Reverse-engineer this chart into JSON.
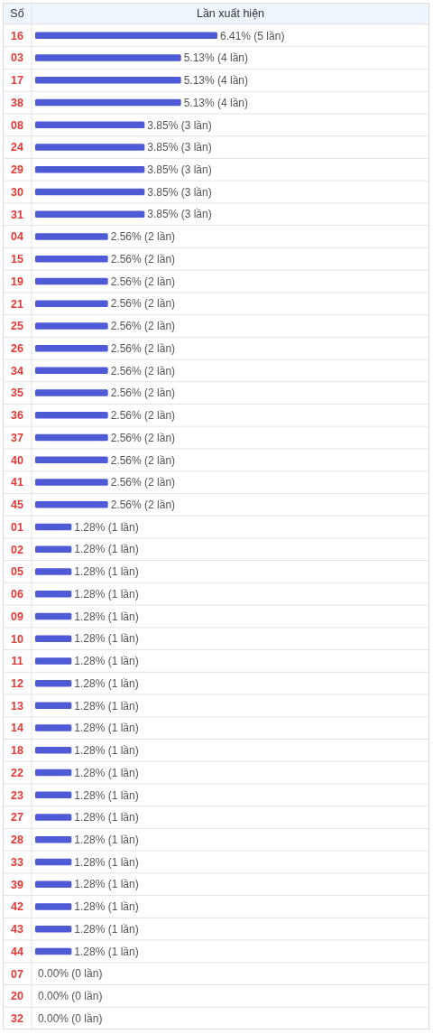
{
  "chart_data": {
    "type": "bar",
    "orientation": "horizontal",
    "xlabel": "Lần xuất hiện",
    "ylabel": "Số",
    "color": "#4e5ad6",
    "grid": "y",
    "categories": [
      "16",
      "03",
      "17",
      "38",
      "08",
      "24",
      "29",
      "30",
      "31",
      "04",
      "15",
      "19",
      "21",
      "25",
      "26",
      "34",
      "35",
      "36",
      "37",
      "40",
      "41",
      "45",
      "01",
      "02",
      "05",
      "06",
      "09",
      "10",
      "11",
      "12",
      "13",
      "14",
      "18",
      "22",
      "23",
      "27",
      "28",
      "33",
      "39",
      "42",
      "43",
      "44",
      "07",
      "20",
      "32"
    ],
    "values": [
      6.41,
      5.13,
      5.13,
      5.13,
      3.85,
      3.85,
      3.85,
      3.85,
      3.85,
      2.56,
      2.56,
      2.56,
      2.56,
      2.56,
      2.56,
      2.56,
      2.56,
      2.56,
      2.56,
      2.56,
      2.56,
      2.56,
      1.28,
      1.28,
      1.28,
      1.28,
      1.28,
      1.28,
      1.28,
      1.28,
      1.28,
      1.28,
      1.28,
      1.28,
      1.28,
      1.28,
      1.28,
      1.28,
      1.28,
      1.28,
      1.28,
      1.28,
      0,
      0,
      0
    ],
    "value_labels": [
      "6.41% (5 lần)",
      "5.13% (4 lần)",
      "5.13% (4 lần)",
      "5.13% (4 lần)",
      "3.85% (3 lần)",
      "3.85% (3 lần)",
      "3.85% (3 lần)",
      "3.85% (3 lần)",
      "3.85% (3 lần)",
      "2.56% (2 lần)",
      "2.56% (2 lần)",
      "2.56% (2 lần)",
      "2.56% (2 lần)",
      "2.56% (2 lần)",
      "2.56% (2 lần)",
      "2.56% (2 lần)",
      "2.56% (2 lần)",
      "2.56% (2 lần)",
      "2.56% (2 lần)",
      "2.56% (2 lần)",
      "2.56% (2 lần)",
      "2.56% (2 lần)",
      "1.28% (1 lần)",
      "1.28% (1 lần)",
      "1.28% (1 lần)",
      "1.28% (1 lần)",
      "1.28% (1 lần)",
      "1.28% (1 lần)",
      "1.28% (1 lần)",
      "1.28% (1 lần)",
      "1.28% (1 lần)",
      "1.28% (1 lần)",
      "1.28% (1 lần)",
      "1.28% (1 lần)",
      "1.28% (1 lần)",
      "1.28% (1 lần)",
      "1.28% (1 lần)",
      "1.28% (1 lần)",
      "1.28% (1 lần)",
      "1.28% (1 lần)",
      "1.28% (1 lần)",
      "1.28% (1 lần)",
      "0.00% (0 lần)",
      "0.00% (0 lần)",
      "0.00% (0 lần)"
    ]
  }
}
